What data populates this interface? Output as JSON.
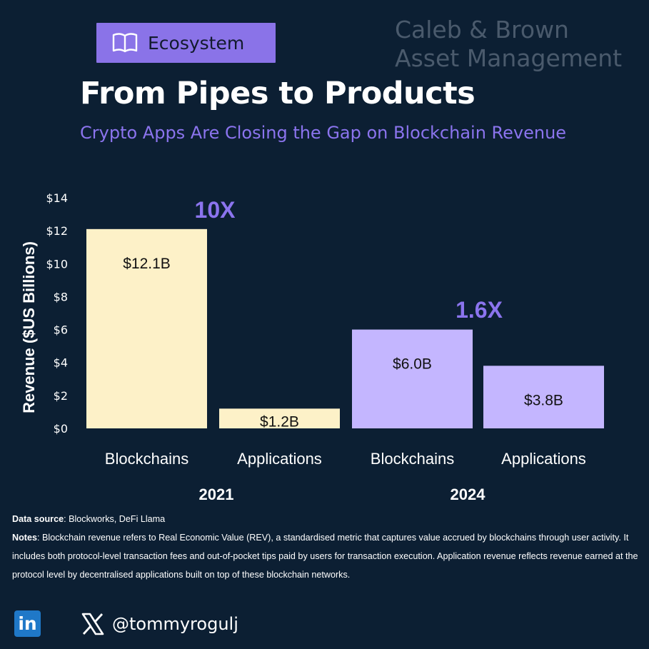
{
  "badge": {
    "label": "Ecosystem",
    "icon": "open-book-icon"
  },
  "brand": {
    "line1": "Caleb & Brown",
    "line2": "Asset Management"
  },
  "title": "From Pipes to Products",
  "subtitle": "Crypto Apps Are Closing the Gap on Blockchain Revenue",
  "footer": {
    "source_label": "Data source",
    "source_text": ": Blockworks, DeFi Llama",
    "notes_label": "Notes",
    "notes_text": ": Blockchain revenue refers to Real Economic Value (REV), a standardised metric that captures value accrued by blockchains through user activity. It includes both protocol-level transaction fees and out-of-pocket tips paid by users for transaction execution. Application revenue reflects revenue earned at the protocol level by decentralised applications built on top of these blockchain networks."
  },
  "social": {
    "linkedin_icon": "linkedin-icon",
    "x_icon": "x-logo-icon",
    "handle": "@tommyrogulj"
  },
  "colors": {
    "bar2021": "#fdf1c8",
    "bar2024": "#c4b6ff",
    "accent": "#8b74ee",
    "background": "#0c1f33"
  },
  "chart_data": {
    "type": "bar",
    "ylabel": "Revenue ($US Billions)",
    "ylim": [
      0,
      14
    ],
    "yticks": [
      "$0",
      "$2",
      "$4",
      "$6",
      "$8",
      "$10",
      "$12",
      "$14"
    ],
    "bars": [
      {
        "category": "Blockchains",
        "group": "2021",
        "value": 12.1,
        "label": "$12.1B"
      },
      {
        "category": "Applications",
        "group": "2021",
        "value": 1.2,
        "label": "$1.2B"
      },
      {
        "category": "Blockchains",
        "group": "2024",
        "value": 6.0,
        "label": "$6.0B"
      },
      {
        "category": "Applications",
        "group": "2024",
        "value": 3.8,
        "label": "$3.8B"
      }
    ],
    "groups": [
      "2021",
      "2024"
    ],
    "annotations": [
      {
        "group": "2021",
        "text": "10X"
      },
      {
        "group": "2024",
        "text": "1.6X"
      }
    ],
    "grid": false
  }
}
